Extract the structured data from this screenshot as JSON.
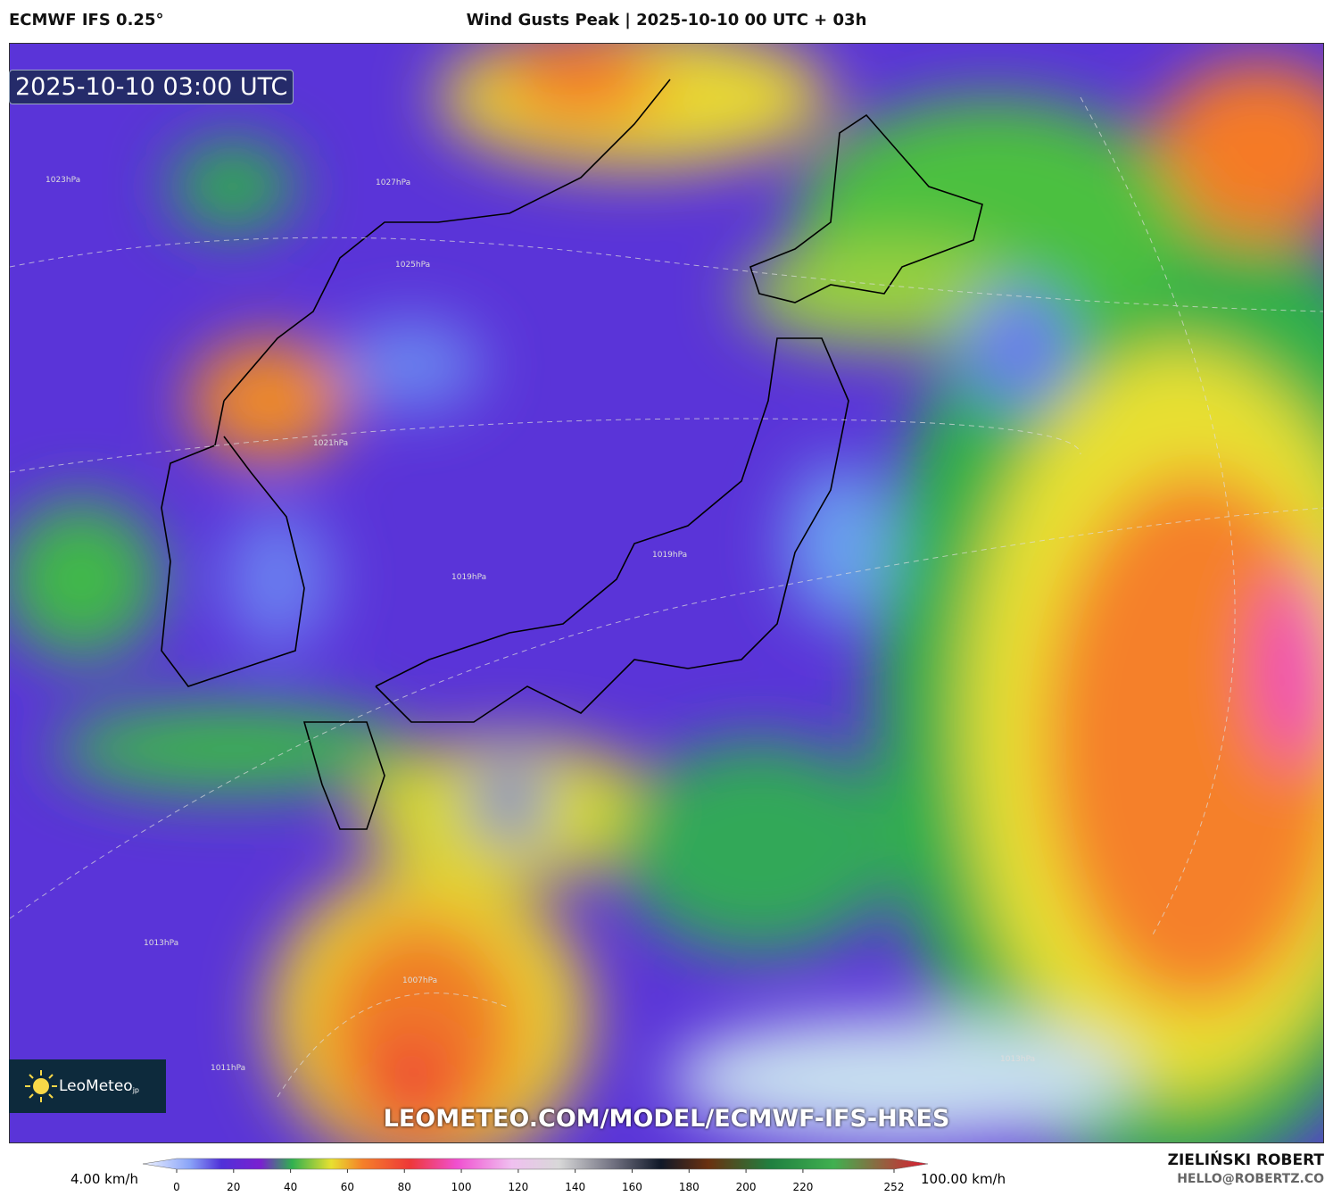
{
  "header": {
    "model": "ECMWF IFS 0.25°",
    "title": "Wind Gusts Peak | 2025-10-10 00 UTC + 03h"
  },
  "map": {
    "timestamp": "2025-10-10 03:00 UTC",
    "watermark": "LEOMETEO.COM/MODEL/ECMWF-IFS-HRES",
    "logo": "LeoMeteo",
    "logo_suffix": "jp",
    "isobar_labels": [
      "1023hPa",
      "1027hPa",
      "1025hPa",
      "1021hPa",
      "1019hPa",
      "1019hPa",
      "1013hPa",
      "1007hPa",
      "1011hPa",
      "1013hPa"
    ]
  },
  "colorbar": {
    "min_label": "4.00 km/h",
    "max_label": "100.00 km/h",
    "range": [
      0,
      252
    ],
    "ticks": [
      0,
      20,
      40,
      60,
      80,
      100,
      120,
      140,
      160,
      180,
      200,
      220,
      252
    ]
  },
  "credit": {
    "author": "ZIELIŃSKI ROBERT",
    "email": "HELLO@ROBERTZ.CO"
  }
}
